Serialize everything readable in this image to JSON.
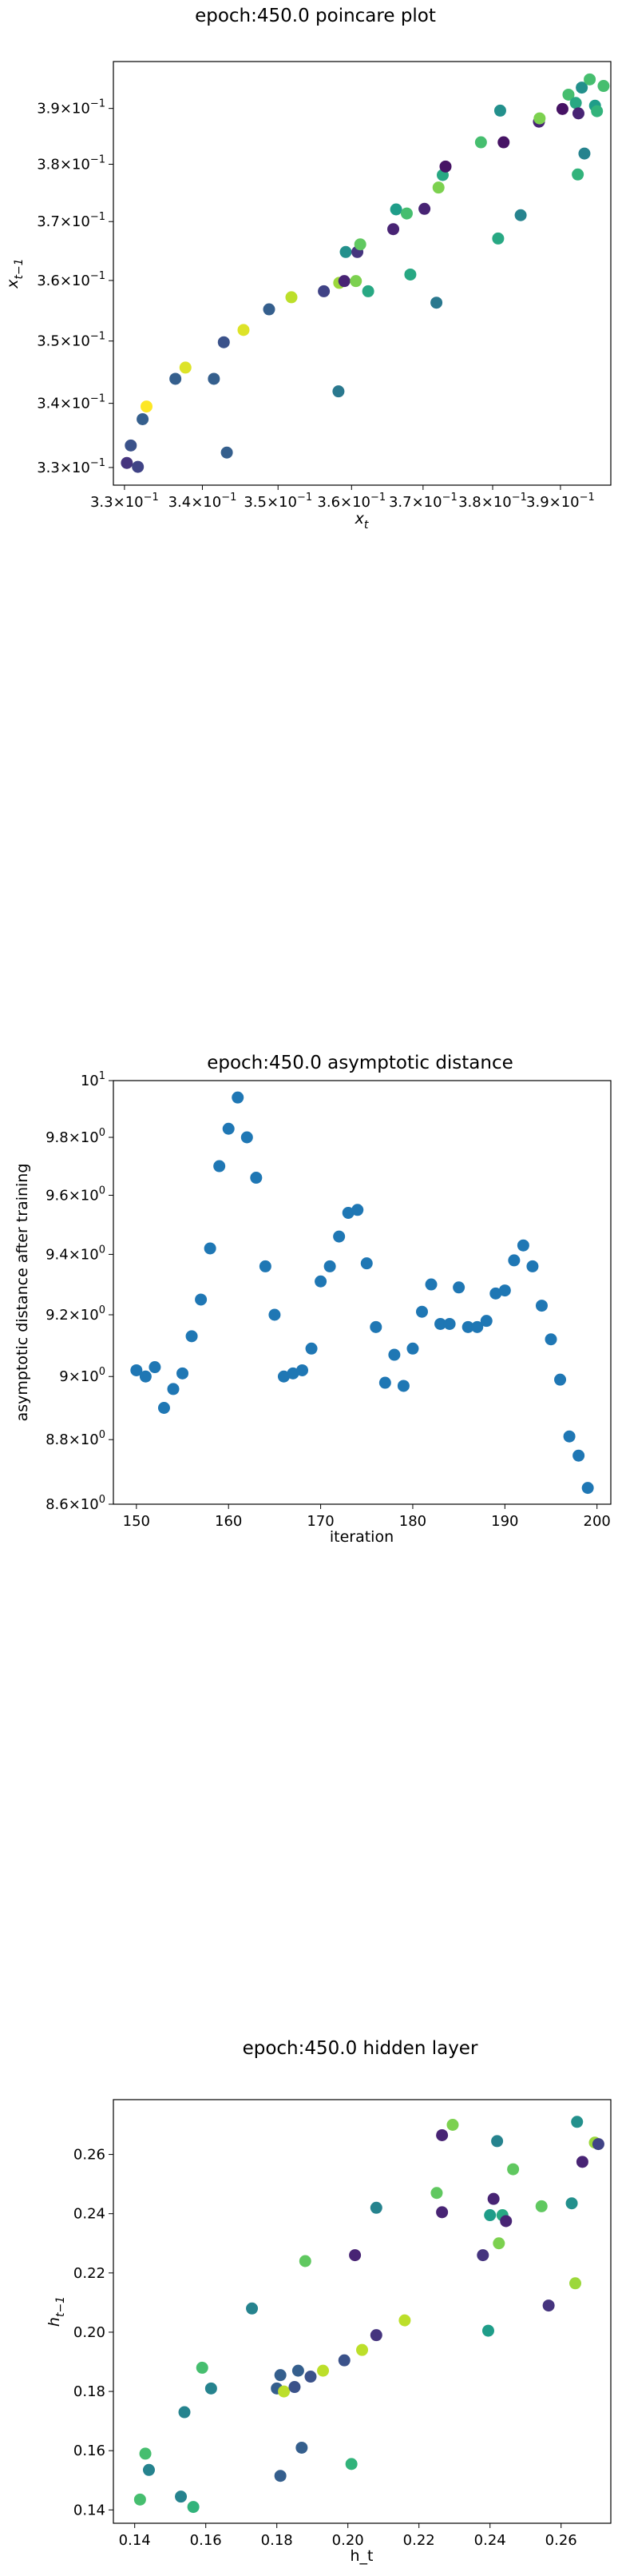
{
  "chart_data": [
    {
      "type": "scatter",
      "title": "epoch:450.0 poincare plot",
      "xlabel": "x_t",
      "ylabel": "x_{t-1}",
      "xscale": "log",
      "yscale": "log",
      "xlim": [
        0.3286,
        0.3976
      ],
      "ylim": [
        0.3273,
        0.3986
      ],
      "xticks": [
        {
          "value": 0.33,
          "base": "3.3×10",
          "exp": "−1"
        },
        {
          "value": 0.34,
          "base": "3.4×10",
          "exp": "−1"
        },
        {
          "value": 0.35,
          "base": "3.5×10",
          "exp": "−1"
        },
        {
          "value": 0.36,
          "base": "3.6×10",
          "exp": "−1"
        },
        {
          "value": 0.37,
          "base": "3.7×10",
          "exp": "−1"
        },
        {
          "value": 0.38,
          "base": "3.8×10",
          "exp": "−1"
        },
        {
          "value": 0.39,
          "base": "3.9×10",
          "exp": "−1"
        }
      ],
      "yticks": [
        {
          "value": 0.33,
          "base": "3.3×10",
          "exp": "−1"
        },
        {
          "value": 0.34,
          "base": "3.4×10",
          "exp": "−1"
        },
        {
          "value": 0.35,
          "base": "3.5×10",
          "exp": "−1"
        },
        {
          "value": 0.36,
          "base": "3.6×10",
          "exp": "−1"
        },
        {
          "value": 0.37,
          "base": "3.7×10",
          "exp": "−1"
        },
        {
          "value": 0.38,
          "base": "3.8×10",
          "exp": "−1"
        },
        {
          "value": 0.39,
          "base": "3.9×10",
          "exp": "−1"
        }
      ],
      "colormap": "viridis",
      "points": [
        {
          "x": 0.3303,
          "y": 0.3307,
          "c": 0.15
        },
        {
          "x": 0.3308,
          "y": 0.3334,
          "c": 0.25
        },
        {
          "x": 0.3317,
          "y": 0.3301,
          "c": 0.2
        },
        {
          "x": 0.3323,
          "y": 0.3375,
          "c": 0.3
        },
        {
          "x": 0.3328,
          "y": 0.3395,
          "c": 1.0
        },
        {
          "x": 0.3365,
          "y": 0.3439,
          "c": 0.3
        },
        {
          "x": 0.3378,
          "y": 0.3457,
          "c": 0.95
        },
        {
          "x": 0.3415,
          "y": 0.3439,
          "c": 0.3
        },
        {
          "x": 0.3428,
          "y": 0.3498,
          "c": 0.25
        },
        {
          "x": 0.3432,
          "y": 0.3323,
          "c": 0.3
        },
        {
          "x": 0.3454,
          "y": 0.3518,
          "c": 0.95
        },
        {
          "x": 0.3488,
          "y": 0.3552,
          "c": 0.3
        },
        {
          "x": 0.3518,
          "y": 0.3572,
          "c": 0.9
        },
        {
          "x": 0.3562,
          "y": 0.3582,
          "c": 0.2
        },
        {
          "x": 0.3582,
          "y": 0.3419,
          "c": 0.4
        },
        {
          "x": 0.3583,
          "y": 0.3596,
          "c": 0.85
        },
        {
          "x": 0.359,
          "y": 0.3599,
          "c": 0.1
        },
        {
          "x": 0.3592,
          "y": 0.3648,
          "c": 0.5
        },
        {
          "x": 0.3606,
          "y": 0.3599,
          "c": 0.8
        },
        {
          "x": 0.3608,
          "y": 0.3648,
          "c": 0.15
        },
        {
          "x": 0.3612,
          "y": 0.3661,
          "c": 0.75
        },
        {
          "x": 0.3623,
          "y": 0.3582,
          "c": 0.6
        },
        {
          "x": 0.3658,
          "y": 0.3687,
          "c": 0.1
        },
        {
          "x": 0.3662,
          "y": 0.3721,
          "c": 0.55
        },
        {
          "x": 0.3677,
          "y": 0.3714,
          "c": 0.7
        },
        {
          "x": 0.3682,
          "y": 0.361,
          "c": 0.6
        },
        {
          "x": 0.3702,
          "y": 0.3722,
          "c": 0.1
        },
        {
          "x": 0.3719,
          "y": 0.3563,
          "c": 0.4
        },
        {
          "x": 0.3722,
          "y": 0.3759,
          "c": 0.8
        },
        {
          "x": 0.3728,
          "y": 0.3781,
          "c": 0.6
        },
        {
          "x": 0.3732,
          "y": 0.3796,
          "c": 0.05
        },
        {
          "x": 0.3783,
          "y": 0.3839,
          "c": 0.7
        },
        {
          "x": 0.3811,
          "y": 0.3896,
          "c": 0.5
        },
        {
          "x": 0.3808,
          "y": 0.3671,
          "c": 0.6
        },
        {
          "x": 0.3816,
          "y": 0.3839,
          "c": 0.05
        },
        {
          "x": 0.3841,
          "y": 0.3711,
          "c": 0.45
        },
        {
          "x": 0.3868,
          "y": 0.3876,
          "c": 0.1
        },
        {
          "x": 0.3869,
          "y": 0.3882,
          "c": 0.8
        },
        {
          "x": 0.3903,
          "y": 0.3899,
          "c": 0.05
        },
        {
          "x": 0.3912,
          "y": 0.3925,
          "c": 0.7
        },
        {
          "x": 0.3923,
          "y": 0.391,
          "c": 0.6
        },
        {
          "x": 0.3927,
          "y": 0.3891,
          "c": 0.1
        },
        {
          "x": 0.3926,
          "y": 0.3782,
          "c": 0.65
        },
        {
          "x": 0.3932,
          "y": 0.3938,
          "c": 0.5
        },
        {
          "x": 0.3936,
          "y": 0.3819,
          "c": 0.45
        },
        {
          "x": 0.3944,
          "y": 0.3953,
          "c": 0.7
        },
        {
          "x": 0.3952,
          "y": 0.3905,
          "c": 0.55
        },
        {
          "x": 0.3955,
          "y": 0.3895,
          "c": 0.65
        },
        {
          "x": 0.3965,
          "y": 0.3941,
          "c": 0.7
        }
      ]
    },
    {
      "type": "scatter",
      "title": "epoch:450.0 asymptotic distance",
      "xlabel": "iteration",
      "ylabel": "asymptotic distance after training",
      "yscale": "log",
      "xlim": [
        147.5,
        201.5
      ],
      "ylim": [
        8.6,
        10.0
      ],
      "color": "#1f77b4",
      "xticks": [
        150,
        160,
        170,
        180,
        190,
        200
      ],
      "yticks": [
        {
          "value": 8.6,
          "base": "8.6×10",
          "exp": "0"
        },
        {
          "value": 8.8,
          "base": "8.8×10",
          "exp": "0"
        },
        {
          "value": 9.0,
          "base": "9×10",
          "exp": "0"
        },
        {
          "value": 9.2,
          "base": "9.2×10",
          "exp": "0"
        },
        {
          "value": 9.4,
          "base": "9.4×10",
          "exp": "0"
        },
        {
          "value": 9.6,
          "base": "9.6×10",
          "exp": "0"
        },
        {
          "value": 9.8,
          "base": "9.8×10",
          "exp": "0"
        },
        {
          "value": 10.0,
          "base": "10",
          "exp": "1"
        }
      ],
      "x": [
        150,
        151,
        152,
        153,
        154,
        155,
        156,
        157,
        158,
        159,
        160,
        161,
        162,
        163,
        164,
        165,
        166,
        167,
        168,
        169,
        170,
        171,
        172,
        173,
        174,
        175,
        176,
        177,
        178,
        179,
        180,
        181,
        182,
        183,
        184,
        185,
        186,
        187,
        188,
        189,
        190,
        191,
        192,
        193,
        194,
        195,
        196,
        197,
        198,
        199
      ],
      "y": [
        9.02,
        9.0,
        9.03,
        8.9,
        8.96,
        9.01,
        9.13,
        9.25,
        9.42,
        9.7,
        9.83,
        9.94,
        9.8,
        9.66,
        9.36,
        9.2,
        9.0,
        9.01,
        9.02,
        9.09,
        9.31,
        9.36,
        9.46,
        9.54,
        9.55,
        9.37,
        9.16,
        8.98,
        9.07,
        8.97,
        9.09,
        9.21,
        9.3,
        9.17,
        9.17,
        9.29,
        9.16,
        9.16,
        9.18,
        9.27,
        9.28,
        9.38,
        9.43,
        9.36,
        9.23,
        9.12,
        8.99,
        8.81,
        8.75,
        8.65
      ]
    },
    {
      "type": "scatter",
      "title": "epoch:450.0 hidden layer",
      "xlabel": "h_t",
      "ylabel": "h_{t-1}",
      "xlim": [
        0.134,
        0.274
      ],
      "ylim": [
        0.1355,
        0.2785
      ],
      "xticks": [
        0.14,
        0.16,
        0.18,
        0.2,
        0.22,
        0.24,
        0.26
      ],
      "yticks": [
        0.14,
        0.16,
        0.18,
        0.2,
        0.22,
        0.24,
        0.26
      ],
      "xticklabels": [
        "0.14",
        "0.16",
        "0.18",
        "0.20",
        "0.22",
        "0.24",
        "0.26"
      ],
      "yticklabels": [
        "0.14",
        "0.16",
        "0.18",
        "0.20",
        "0.22",
        "0.24",
        "0.26"
      ],
      "colormap": "viridis",
      "points": [
        {
          "x": 0.1415,
          "y": 0.1435,
          "c": 0.7
        },
        {
          "x": 0.143,
          "y": 0.159,
          "c": 0.7
        },
        {
          "x": 0.144,
          "y": 0.1535,
          "c": 0.45
        },
        {
          "x": 0.153,
          "y": 0.1445,
          "c": 0.45
        },
        {
          "x": 0.154,
          "y": 0.173,
          "c": 0.45
        },
        {
          "x": 0.1565,
          "y": 0.141,
          "c": 0.65
        },
        {
          "x": 0.159,
          "y": 0.188,
          "c": 0.7
        },
        {
          "x": 0.1615,
          "y": 0.181,
          "c": 0.45
        },
        {
          "x": 0.173,
          "y": 0.208,
          "c": 0.45
        },
        {
          "x": 0.18,
          "y": 0.181,
          "c": 0.3
        },
        {
          "x": 0.181,
          "y": 0.1855,
          "c": 0.3
        },
        {
          "x": 0.181,
          "y": 0.1515,
          "c": 0.3
        },
        {
          "x": 0.182,
          "y": 0.18,
          "c": 0.9
        },
        {
          "x": 0.185,
          "y": 0.1815,
          "c": 0.25
        },
        {
          "x": 0.186,
          "y": 0.187,
          "c": 0.3
        },
        {
          "x": 0.187,
          "y": 0.161,
          "c": 0.3
        },
        {
          "x": 0.188,
          "y": 0.224,
          "c": 0.75
        },
        {
          "x": 0.1895,
          "y": 0.185,
          "c": 0.25
        },
        {
          "x": 0.193,
          "y": 0.187,
          "c": 0.9
        },
        {
          "x": 0.199,
          "y": 0.1905,
          "c": 0.25
        },
        {
          "x": 0.201,
          "y": 0.1555,
          "c": 0.65
        },
        {
          "x": 0.202,
          "y": 0.226,
          "c": 0.1
        },
        {
          "x": 0.204,
          "y": 0.194,
          "c": 0.9
        },
        {
          "x": 0.208,
          "y": 0.199,
          "c": 0.15
        },
        {
          "x": 0.208,
          "y": 0.242,
          "c": 0.45
        },
        {
          "x": 0.216,
          "y": 0.204,
          "c": 0.9
        },
        {
          "x": 0.225,
          "y": 0.247,
          "c": 0.75
        },
        {
          "x": 0.2265,
          "y": 0.2665,
          "c": 0.1
        },
        {
          "x": 0.2265,
          "y": 0.2405,
          "c": 0.1
        },
        {
          "x": 0.2295,
          "y": 0.27,
          "c": 0.8
        },
        {
          "x": 0.238,
          "y": 0.226,
          "c": 0.15
        },
        {
          "x": 0.2395,
          "y": 0.2005,
          "c": 0.55
        },
        {
          "x": 0.24,
          "y": 0.2395,
          "c": 0.55
        },
        {
          "x": 0.241,
          "y": 0.245,
          "c": 0.1
        },
        {
          "x": 0.242,
          "y": 0.2645,
          "c": 0.45
        },
        {
          "x": 0.2425,
          "y": 0.23,
          "c": 0.8
        },
        {
          "x": 0.2435,
          "y": 0.2395,
          "c": 0.6
        },
        {
          "x": 0.2445,
          "y": 0.2375,
          "c": 0.1
        },
        {
          "x": 0.2465,
          "y": 0.255,
          "c": 0.75
        },
        {
          "x": 0.2545,
          "y": 0.2425,
          "c": 0.75
        },
        {
          "x": 0.2565,
          "y": 0.209,
          "c": 0.15
        },
        {
          "x": 0.263,
          "y": 0.2435,
          "c": 0.5
        },
        {
          "x": 0.264,
          "y": 0.2165,
          "c": 0.85
        },
        {
          "x": 0.2645,
          "y": 0.271,
          "c": 0.5
        },
        {
          "x": 0.266,
          "y": 0.2575,
          "c": 0.1
        },
        {
          "x": 0.2695,
          "y": 0.264,
          "c": 0.85
        },
        {
          "x": 0.2705,
          "y": 0.2635,
          "c": 0.2
        }
      ]
    }
  ]
}
